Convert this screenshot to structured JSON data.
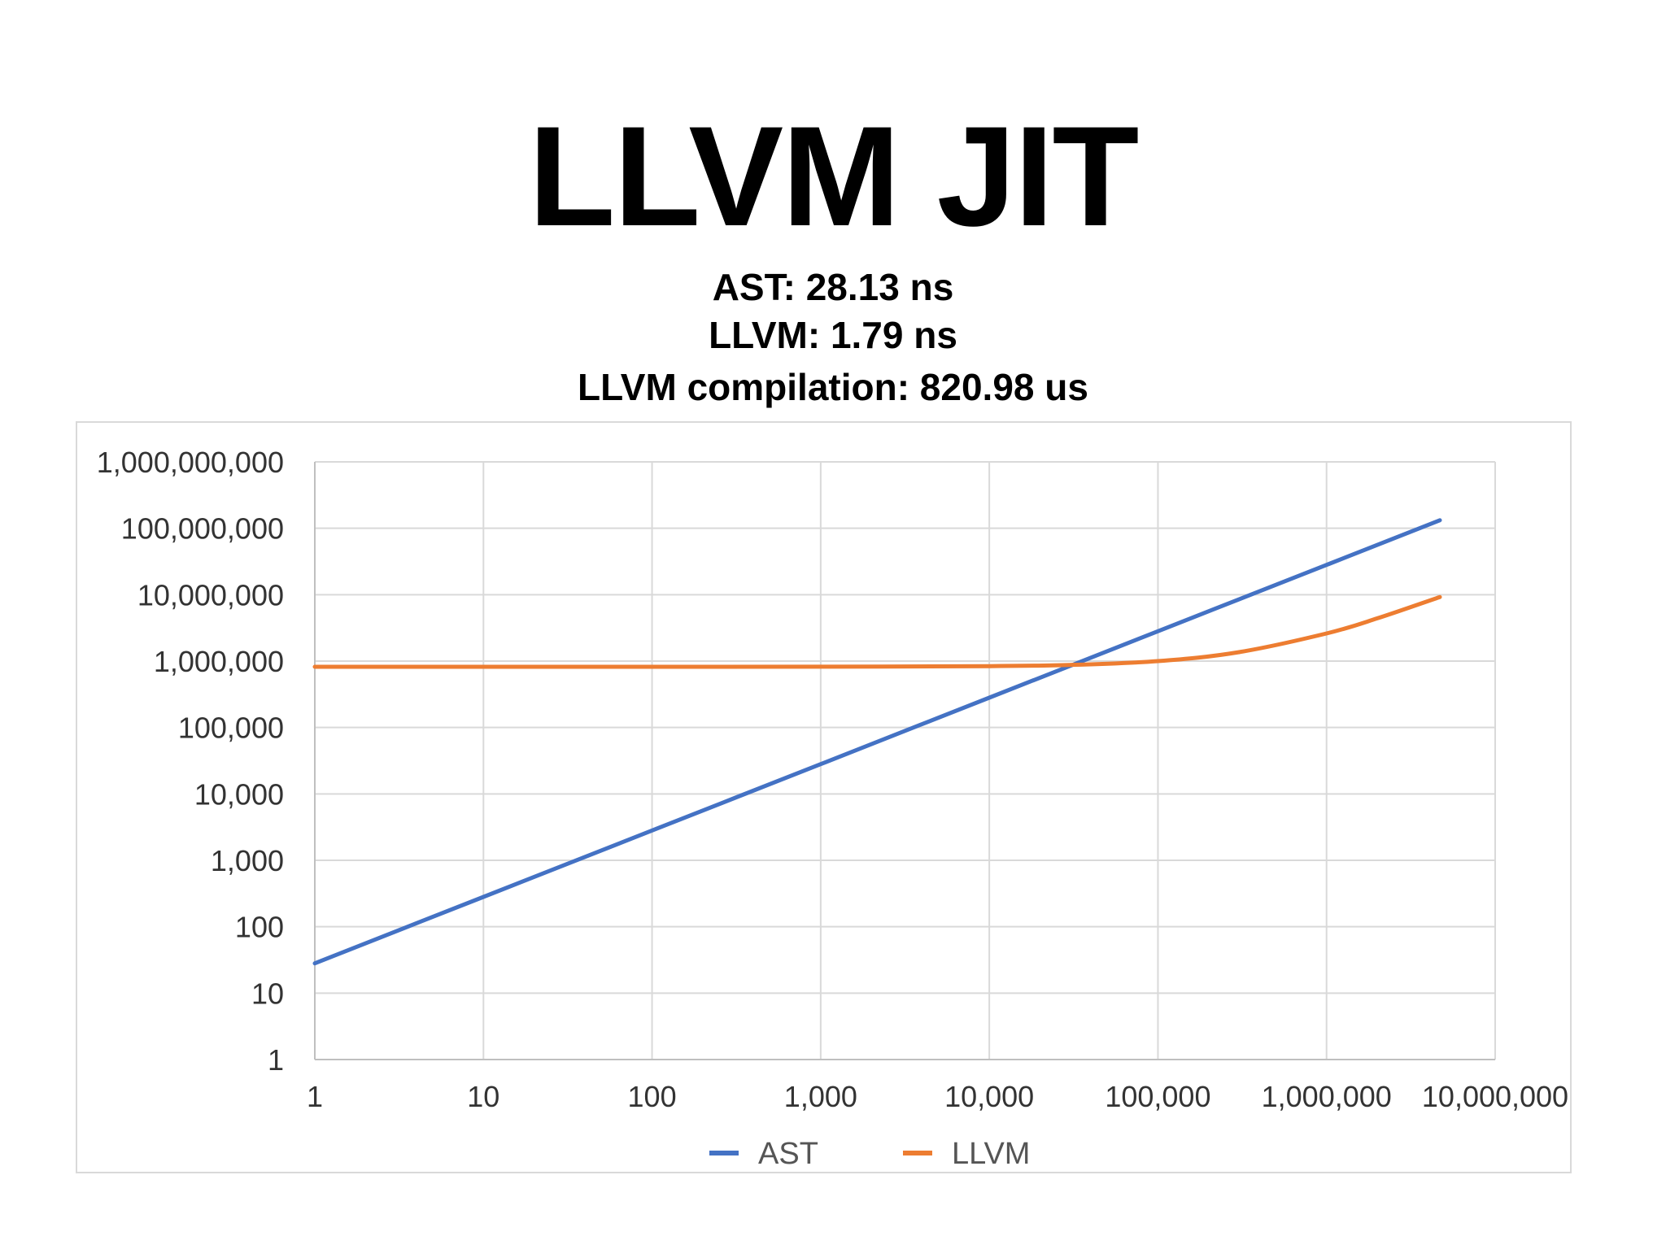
{
  "title": "LLVM JIT",
  "stats": {
    "ast": "AST:  28.13 ns",
    "llvm": "LLVM:  1.79 ns",
    "compilation": "LLVM compilation: 820.98 us"
  },
  "colors": {
    "ast": "#4472C4",
    "llvm": "#ED7D31",
    "grid": "#d9d9d9",
    "axis": "#bfbfbf"
  },
  "chart_data": {
    "type": "line",
    "xscale": "log",
    "yscale": "log",
    "xlim": [
      1,
      10000000
    ],
    "ylim": [
      1,
      1000000000
    ],
    "x_tick_labels": [
      "1",
      "10",
      "100",
      "1,000",
      "10,000",
      "100,000",
      "1,000,000",
      "10,000,000"
    ],
    "y_tick_labels": [
      "1",
      "10",
      "100",
      "1,000",
      "10,000",
      "100,000",
      "1,000,000",
      "10,000,000",
      "100,000,000",
      "1,000,000,000"
    ],
    "grid": true,
    "legend_placement": "bottom",
    "series": [
      {
        "name": "AST",
        "x": [
          1,
          10,
          100,
          1000,
          10000,
          100000,
          1000000,
          4700000
        ],
        "y": [
          28.13,
          281.3,
          2813,
          28130,
          281300,
          2813000,
          28130000,
          132211000
        ]
      },
      {
        "name": "LLVM",
        "x": [
          1,
          10,
          100,
          1000,
          10000,
          30000,
          100000,
          300000,
          1000000,
          2000000,
          4700000
        ],
        "y": [
          820982,
          821000,
          821160,
          822770,
          838880,
          874680,
          999980,
          1357980,
          2610980,
          4400980,
          9233980
        ]
      }
    ]
  }
}
